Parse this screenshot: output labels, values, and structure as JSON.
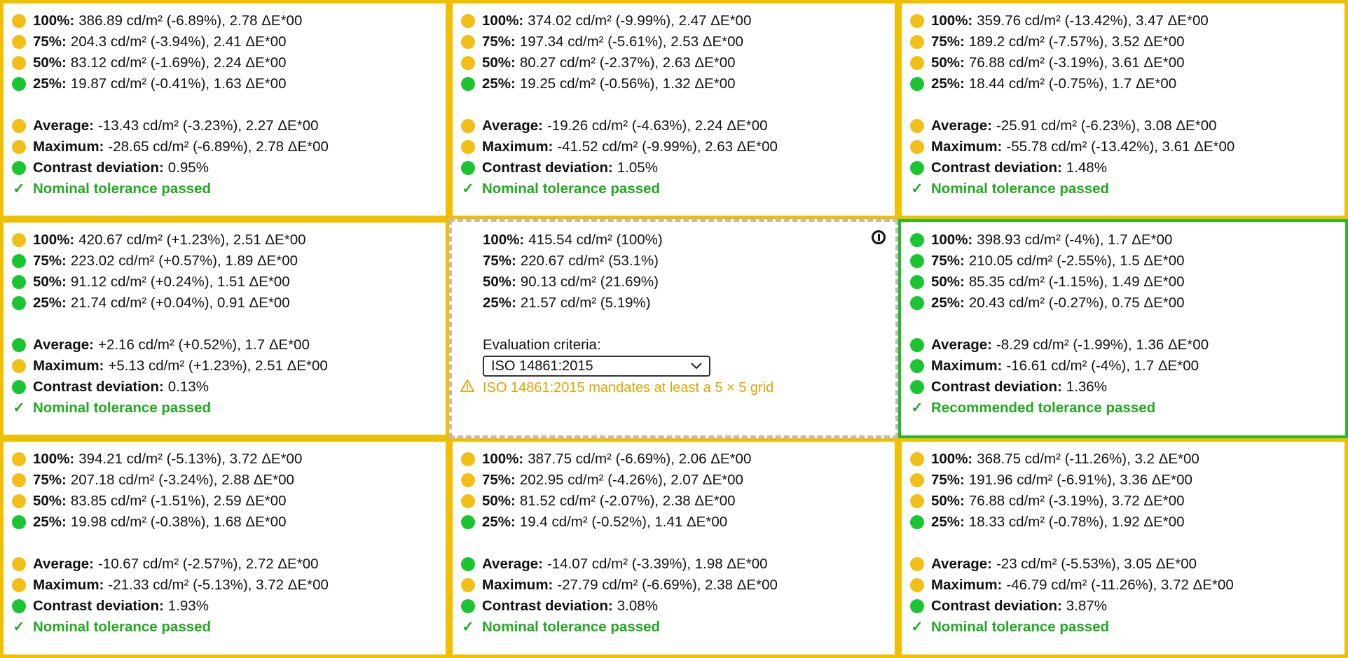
{
  "colors": {
    "warning": "#f0c000",
    "pass": "#22bb22",
    "dot_yellow": "#f2bf16",
    "dot_green": "#19c531",
    "warn_text": "#e0a400"
  },
  "cells": [
    {
      "levels": [
        {
          "label": "100%:",
          "text": "386.89 cd/m² (-6.89%), 2.78 ΔE*00",
          "status": "yellow"
        },
        {
          "label": "75%:",
          "text": "204.3 cd/m² (-3.94%), 2.41 ΔE*00",
          "status": "yellow"
        },
        {
          "label": "50%:",
          "text": "83.12 cd/m² (-1.69%), 2.24 ΔE*00",
          "status": "yellow"
        },
        {
          "label": "25%:",
          "text": "19.87 cd/m² (-0.41%), 1.63 ΔE*00",
          "status": "green"
        }
      ],
      "average": {
        "label": "Average:",
        "text": "-13.43 cd/m² (-3.23%), 2.27 ΔE*00",
        "status": "yellow"
      },
      "maximum": {
        "label": "Maximum:",
        "text": "-28.65 cd/m² (-6.89%), 2.78 ΔE*00",
        "status": "yellow"
      },
      "contrast": {
        "label": "Contrast deviation:",
        "text": "0.95%",
        "status": "green"
      },
      "result": {
        "icon": "✓",
        "text": "Nominal tolerance passed"
      }
    },
    {
      "levels": [
        {
          "label": "100%:",
          "text": "374.02 cd/m² (-9.99%), 2.47 ΔE*00",
          "status": "yellow"
        },
        {
          "label": "75%:",
          "text": "197.34 cd/m² (-5.61%), 2.53 ΔE*00",
          "status": "yellow"
        },
        {
          "label": "50%:",
          "text": "80.27 cd/m² (-2.37%), 2.63 ΔE*00",
          "status": "yellow"
        },
        {
          "label": "25%:",
          "text": "19.25 cd/m² (-0.56%), 1.32 ΔE*00",
          "status": "green"
        }
      ],
      "average": {
        "label": "Average:",
        "text": "-19.26 cd/m² (-4.63%), 2.24 ΔE*00",
        "status": "yellow"
      },
      "maximum": {
        "label": "Maximum:",
        "text": "-41.52 cd/m² (-9.99%), 2.63 ΔE*00",
        "status": "yellow"
      },
      "contrast": {
        "label": "Contrast deviation:",
        "text": "1.05%",
        "status": "green"
      },
      "result": {
        "icon": "✓",
        "text": "Nominal tolerance passed"
      }
    },
    {
      "levels": [
        {
          "label": "100%:",
          "text": "359.76 cd/m² (-13.42%), 3.47 ΔE*00",
          "status": "yellow"
        },
        {
          "label": "75%:",
          "text": "189.2 cd/m² (-7.57%), 3.52 ΔE*00",
          "status": "yellow"
        },
        {
          "label": "50%:",
          "text": "76.88 cd/m² (-3.19%), 3.61 ΔE*00",
          "status": "yellow"
        },
        {
          "label": "25%:",
          "text": "18.44 cd/m² (-0.75%), 1.7 ΔE*00",
          "status": "green"
        }
      ],
      "average": {
        "label": "Average:",
        "text": "-25.91 cd/m² (-6.23%), 3.08 ΔE*00",
        "status": "yellow"
      },
      "maximum": {
        "label": "Maximum:",
        "text": "-55.78 cd/m² (-13.42%), 3.61 ΔE*00",
        "status": "yellow"
      },
      "contrast": {
        "label": "Contrast deviation:",
        "text": "1.48%",
        "status": "green"
      },
      "result": {
        "icon": "✓",
        "text": "Nominal tolerance passed"
      }
    },
    {
      "levels": [
        {
          "label": "100%:",
          "text": "420.67 cd/m² (+1.23%), 2.51 ΔE*00",
          "status": "yellow"
        },
        {
          "label": "75%:",
          "text": "223.02 cd/m² (+0.57%), 1.89 ΔE*00",
          "status": "green"
        },
        {
          "label": "50%:",
          "text": "91.12 cd/m² (+0.24%), 1.51 ΔE*00",
          "status": "green"
        },
        {
          "label": "25%:",
          "text": "21.74 cd/m² (+0.04%), 0.91 ΔE*00",
          "status": "green"
        }
      ],
      "average": {
        "label": "Average:",
        "text": "+2.16 cd/m² (+0.52%), 1.7 ΔE*00",
        "status": "green"
      },
      "maximum": {
        "label": "Maximum:",
        "text": "+5.13 cd/m² (+1.23%), 2.51 ΔE*00",
        "status": "yellow"
      },
      "contrast": {
        "label": "Contrast deviation:",
        "text": "0.13%",
        "status": "green"
      },
      "result": {
        "icon": "✓",
        "text": "Nominal tolerance passed"
      }
    },
    {
      "reference": true,
      "levels": [
        {
          "label": "100%:",
          "text": "415.54 cd/m² (100%)"
        },
        {
          "label": "75%:",
          "text": "220.67 cd/m² (53.1%)"
        },
        {
          "label": "50%:",
          "text": "90.13 cd/m² (21.69%)"
        },
        {
          "label": "25%:",
          "text": "21.57 cd/m² (5.19%)"
        }
      ],
      "criteria_label": "Evaluation criteria:",
      "criteria_value": "ISO 14861:2015",
      "warning": "ISO 14861:2015 mandates at least a 5 × 5 grid"
    },
    {
      "levels": [
        {
          "label": "100%:",
          "text": "398.93 cd/m² (-4%), 1.7 ΔE*00",
          "status": "green"
        },
        {
          "label": "75%:",
          "text": "210.05 cd/m² (-2.55%), 1.5 ΔE*00",
          "status": "green"
        },
        {
          "label": "50%:",
          "text": "85.35 cd/m² (-1.15%), 1.49 ΔE*00",
          "status": "green"
        },
        {
          "label": "25%:",
          "text": "20.43 cd/m² (-0.27%), 0.75 ΔE*00",
          "status": "green"
        }
      ],
      "average": {
        "label": "Average:",
        "text": "-8.29 cd/m² (-1.99%), 1.36 ΔE*00",
        "status": "green"
      },
      "maximum": {
        "label": "Maximum:",
        "text": "-16.61 cd/m² (-4%), 1.7 ΔE*00",
        "status": "green"
      },
      "contrast": {
        "label": "Contrast deviation:",
        "text": "1.36%",
        "status": "green"
      },
      "result": {
        "icon": "✓",
        "text": "Recommended tolerance passed"
      }
    },
    {
      "levels": [
        {
          "label": "100%:",
          "text": "394.21 cd/m² (-5.13%), 3.72 ΔE*00",
          "status": "yellow"
        },
        {
          "label": "75%:",
          "text": "207.18 cd/m² (-3.24%), 2.88 ΔE*00",
          "status": "yellow"
        },
        {
          "label": "50%:",
          "text": "83.85 cd/m² (-1.51%), 2.59 ΔE*00",
          "status": "yellow"
        },
        {
          "label": "25%:",
          "text": "19.98 cd/m² (-0.38%), 1.68 ΔE*00",
          "status": "green"
        }
      ],
      "average": {
        "label": "Average:",
        "text": "-10.67 cd/m² (-2.57%), 2.72 ΔE*00",
        "status": "yellow"
      },
      "maximum": {
        "label": "Maximum:",
        "text": "-21.33 cd/m² (-5.13%), 3.72 ΔE*00",
        "status": "yellow"
      },
      "contrast": {
        "label": "Contrast deviation:",
        "text": "1.93%",
        "status": "green"
      },
      "result": {
        "icon": "✓",
        "text": "Nominal tolerance passed"
      }
    },
    {
      "levels": [
        {
          "label": "100%:",
          "text": "387.75 cd/m² (-6.69%), 2.06 ΔE*00",
          "status": "yellow"
        },
        {
          "label": "75%:",
          "text": "202.95 cd/m² (-4.26%), 2.07 ΔE*00",
          "status": "yellow"
        },
        {
          "label": "50%:",
          "text": "81.52 cd/m² (-2.07%), 2.38 ΔE*00",
          "status": "yellow"
        },
        {
          "label": "25%:",
          "text": "19.4 cd/m² (-0.52%), 1.41 ΔE*00",
          "status": "green"
        }
      ],
      "average": {
        "label": "Average:",
        "text": "-14.07 cd/m² (-3.39%), 1.98 ΔE*00",
        "status": "green"
      },
      "maximum": {
        "label": "Maximum:",
        "text": "-27.79 cd/m² (-6.69%), 2.38 ΔE*00",
        "status": "yellow"
      },
      "contrast": {
        "label": "Contrast deviation:",
        "text": "3.08%",
        "status": "green"
      },
      "result": {
        "icon": "✓",
        "text": "Nominal tolerance passed"
      }
    },
    {
      "levels": [
        {
          "label": "100%:",
          "text": "368.75 cd/m² (-11.26%), 3.2 ΔE*00",
          "status": "yellow"
        },
        {
          "label": "75%:",
          "text": "191.96 cd/m² (-6.91%), 3.36 ΔE*00",
          "status": "yellow"
        },
        {
          "label": "50%:",
          "text": "76.88 cd/m² (-3.19%), 3.72 ΔE*00",
          "status": "yellow"
        },
        {
          "label": "25%:",
          "text": "18.33 cd/m² (-0.78%), 1.92 ΔE*00",
          "status": "green"
        }
      ],
      "average": {
        "label": "Average:",
        "text": "-23 cd/m² (-5.53%), 3.05 ΔE*00",
        "status": "yellow"
      },
      "maximum": {
        "label": "Maximum:",
        "text": "-46.79 cd/m² (-11.26%), 3.72 ΔE*00",
        "status": "yellow"
      },
      "contrast": {
        "label": "Contrast deviation:",
        "text": "3.87%",
        "status": "green"
      },
      "result": {
        "icon": "✓",
        "text": "Nominal tolerance passed"
      }
    }
  ]
}
